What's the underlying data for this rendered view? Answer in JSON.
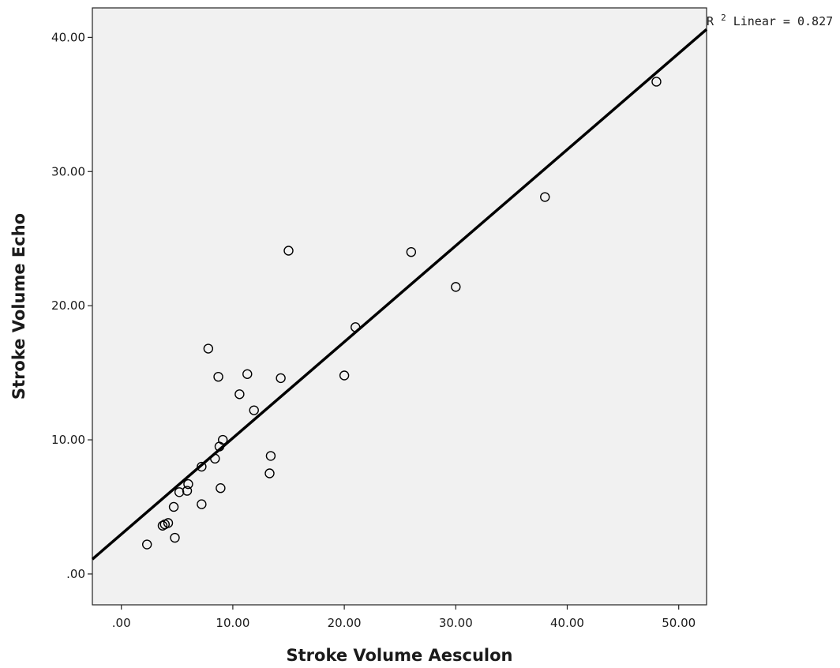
{
  "chart_data": {
    "type": "scatter",
    "title": "",
    "xlabel": "Stroke Volume Aesculon",
    "ylabel": "Stroke Volume Echo",
    "xlim": [
      -2.6,
      52.5
    ],
    "ylim": [
      -2.3,
      42.2
    ],
    "xticks": [
      0,
      10,
      20,
      30,
      40,
      50
    ],
    "yticks": [
      0,
      10,
      20,
      30,
      40
    ],
    "xtick_labels": [
      ".00",
      "10.00",
      "20.00",
      "30.00",
      "40.00",
      "50.00"
    ],
    "ytick_labels": [
      ".00",
      "10.00",
      "20.00",
      "30.00",
      "40.00"
    ],
    "grid": false,
    "background": "#f1f1f1",
    "series": [
      {
        "x": [
          2.3,
          3.7,
          3.9,
          4.2,
          4.7,
          4.8,
          5.2,
          5.9,
          6.0,
          7.2,
          7.2,
          7.8,
          8.4,
          8.7,
          8.8,
          8.9,
          9.1,
          10.6,
          11.3,
          11.9,
          13.3,
          13.4,
          14.3,
          15.0,
          20.0,
          21.0,
          26.0,
          30.0,
          38.0,
          48.0
        ],
        "y": [
          2.2,
          3.6,
          3.7,
          3.8,
          5.0,
          2.7,
          6.1,
          6.2,
          6.7,
          8.0,
          5.2,
          16.8,
          8.6,
          14.7,
          9.5,
          6.4,
          10.0,
          13.4,
          14.9,
          12.2,
          7.5,
          8.8,
          14.6,
          24.1,
          14.8,
          18.4,
          24.0,
          21.4,
          28.1,
          36.7
        ]
      }
    ],
    "fit_line": {
      "x": [
        -2.6,
        52.5
      ],
      "y": [
        1.1,
        40.6
      ]
    },
    "annotation": {
      "base": "R",
      "sup": "2",
      "text": " Linear = 0.827"
    },
    "colors": {
      "plot_bg": "#f1f1f1",
      "markers": "#000000",
      "fit": "#000000"
    }
  }
}
